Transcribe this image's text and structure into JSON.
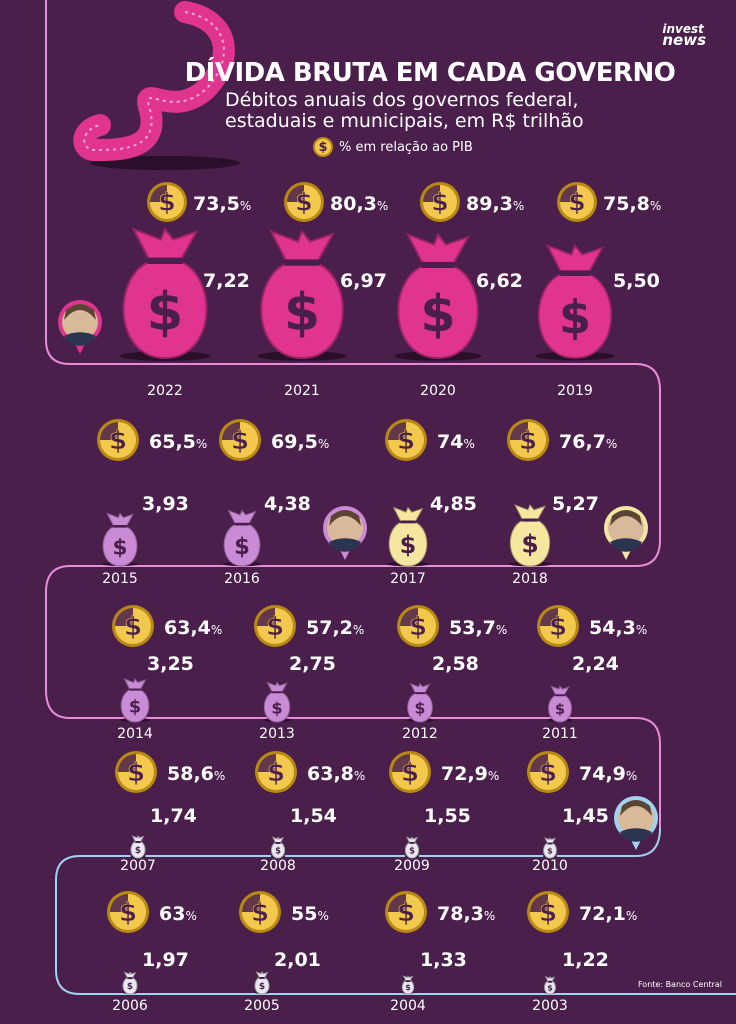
{
  "brand": {
    "line1": "invest",
    "line2": "news"
  },
  "header": {
    "title": "DÍVIDA BRUTA EM CADA GOVERNO",
    "subtitle_line1": "Débitos anuais dos governos federal,",
    "subtitle_line2": "estaduais e municipais, em R$ trilhão",
    "legend_label": "% em relação ao PIB",
    "legend_icon": "dollar-coin-icon"
  },
  "source": "Fonte: Banco Central",
  "colors": {
    "background": "#4a1f4b",
    "bolsonaro": "#e0348f",
    "temer": "#f6e7a0",
    "dilma": "#c98ad6",
    "lula": "#e8e8f0",
    "coin": "#f2c94c",
    "path_pink": "#e88bd8",
    "path_blue": "#9fd3f0"
  },
  "chart_data": {
    "type": "pictogram",
    "title": "DÍVIDA BRUTA EM CADA GOVERNO",
    "unit": "R$ trilhão",
    "secondary_unit": "% em relação ao PIB",
    "rows": [
      [
        {
          "year": "2022",
          "value": 7.22,
          "label": "7,22",
          "pib": "73,5",
          "gov": "bolsonaro"
        },
        {
          "year": "2021",
          "value": 6.97,
          "label": "6,97",
          "pib": "80,3",
          "gov": "bolsonaro"
        },
        {
          "year": "2020",
          "value": 6.62,
          "label": "6,62",
          "pib": "89,3",
          "gov": "bolsonaro"
        },
        {
          "year": "2019",
          "value": 5.5,
          "label": "5,50",
          "pib": "75,8",
          "gov": "bolsonaro"
        }
      ],
      [
        {
          "year": "2015",
          "value": 3.93,
          "label": "3,93",
          "pib": "65,5",
          "gov": "dilma"
        },
        {
          "year": "2016",
          "value": 4.38,
          "label": "4,38",
          "pib": "69,5",
          "gov": "dilma"
        },
        {
          "year": "2017",
          "value": 4.85,
          "label": "4,85",
          "pib": "74",
          "gov": "temer"
        },
        {
          "year": "2018",
          "value": 5.27,
          "label": "5,27",
          "pib": "76,7",
          "gov": "temer"
        }
      ],
      [
        {
          "year": "2014",
          "value": 3.25,
          "label": "3,25",
          "pib": "63,4",
          "gov": "dilma"
        },
        {
          "year": "2013",
          "value": 2.75,
          "label": "2,75",
          "pib": "57,2",
          "gov": "dilma"
        },
        {
          "year": "2012",
          "value": 2.58,
          "label": "2,58",
          "pib": "53,7",
          "gov": "dilma"
        },
        {
          "year": "2011",
          "value": 2.24,
          "label": "2,24",
          "pib": "54,3",
          "gov": "dilma"
        }
      ],
      [
        {
          "year": "2007",
          "value": 1.74,
          "label": "1,74",
          "pib": "58,6",
          "gov": "lula"
        },
        {
          "year": "2008",
          "value": 1.54,
          "label": "1,54",
          "pib": "63,8",
          "gov": "lula"
        },
        {
          "year": "2009",
          "value": 1.55,
          "label": "1,55",
          "pib": "72,9",
          "gov": "lula"
        },
        {
          "year": "2010",
          "value": 1.45,
          "label": "1,45",
          "pib": "74,9",
          "gov": "lula"
        }
      ],
      [
        {
          "year": "2006",
          "value": 1.97,
          "label": "1,97",
          "pib": "63",
          "gov": "lula"
        },
        {
          "year": "2005",
          "value": 2.01,
          "label": "2,01",
          "pib": "55",
          "gov": "lula"
        },
        {
          "year": "2004",
          "value": 1.33,
          "label": "1,33",
          "pib": "78,3",
          "gov": "lula"
        },
        {
          "year": "2003",
          "value": 1.22,
          "label": "1,22",
          "pib": "72,1",
          "gov": "lula"
        }
      ]
    ],
    "percent_suffix": "%"
  }
}
